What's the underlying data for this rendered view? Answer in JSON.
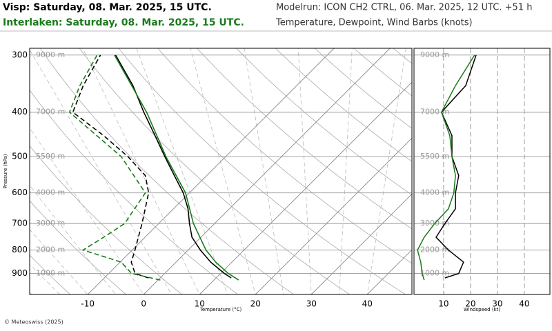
{
  "header": {
    "title_1": "Visp: Saturday, 08. Mar. 2025, 15 UTC.",
    "title_2": "Interlaken: Saturday, 08. Mar. 2025, 15 UTC.",
    "modelrun": "Modelrun: ICON CH2 CTRL, 06. Mar. 2025, 12 UTC. +51 h",
    "subtitle": "Temperature, Dewpoint, Wind Barbs (knots)"
  },
  "footer": "© Meteoswiss (2025)",
  "chart_data": [
    {
      "type": "skewt",
      "ylabel": "Pressure (hPa)",
      "xlabel": "Temperature (°C)",
      "log_y": true,
      "xlim": [
        -20.4,
        48.0
      ],
      "ylim": [
        1000,
        290
      ],
      "xticks": [
        -10,
        0,
        10,
        20,
        30,
        40
      ],
      "yticks": [
        300,
        400,
        500,
        600,
        700,
        800,
        900
      ],
      "altitude_labels": [
        "9000 m",
        "7000 m",
        "5500 m",
        "4000 m",
        "3000 m",
        "2000 m",
        "1000 m"
      ],
      "series": [
        {
          "color": "#000000",
          "dashed": false,
          "pressure": [
            920,
            900,
            850,
            800,
            750,
            700,
            650,
            600,
            550,
            500,
            450,
            400,
            350,
            300
          ],
          "values": [
            12.7,
            10.7,
            6.2,
            2.2,
            -1.6,
            -4.5,
            -7.4,
            -11.1,
            -15.8,
            -20.9,
            -26.4,
            -32.6,
            -39.3,
            -47.9
          ]
        },
        {
          "color": "#1a7a1a",
          "dashed": false,
          "pressure": [
            930,
            900,
            850,
            800,
            700,
            600,
            500,
            400,
            300
          ],
          "values": [
            14.4,
            11.4,
            7.1,
            3.2,
            -3.8,
            -10.7,
            -20.7,
            -32.1,
            -48.1
          ]
        },
        {
          "color": "#000000",
          "dashed": true,
          "pressure": [
            920,
            900,
            850,
            800,
            700,
            600,
            550,
            500,
            450,
            400,
            350,
            300
          ],
          "values": [
            -2.1,
            -5.3,
            -8.0,
            -9.5,
            -13.0,
            -17.3,
            -21.0,
            -27.5,
            -35.6,
            -45.3,
            -48.2,
            -50.6
          ]
        },
        {
          "color": "#1a7a1a",
          "dashed": true,
          "pressure": [
            930,
            900,
            850,
            800,
            750,
            700,
            600,
            500,
            400,
            350,
            300
          ],
          "values": [
            0.4,
            -5.9,
            -9.8,
            -18.8,
            -17.4,
            -16.1,
            -17.9,
            -28.7,
            -45.9,
            -48.8,
            -51.2
          ]
        }
      ]
    },
    {
      "type": "profile",
      "xlabel": "Windspeed (kt)",
      "log_y": true,
      "xlim": [
        -1,
        49.5
      ],
      "ylim": [
        1000,
        290
      ],
      "xticks": [
        10,
        20,
        30,
        40
      ],
      "yticks": [
        300,
        400,
        500,
        600,
        700,
        800,
        900
      ],
      "altitude_labels": [
        "9000 m",
        "7000 m",
        "5500 m",
        "4000 m",
        "3000 m",
        "2000 m",
        "1000 m"
      ],
      "series": [
        {
          "color": "#000000",
          "pressure": [
            920,
            900,
            850,
            800,
            750,
            700,
            650,
            600,
            550,
            500,
            450,
            400,
            350,
            300
          ],
          "values": [
            10.5,
            15.6,
            17.4,
            11.8,
            7.2,
            10.5,
            14.4,
            14.4,
            15.6,
            13.1,
            13.1,
            9.2,
            18.2,
            22.1
          ]
        },
        {
          "color": "#1a7a1a",
          "pressure": [
            930,
            900,
            850,
            800,
            750,
            700,
            650,
            600,
            550,
            500,
            450,
            400,
            350,
            300
          ],
          "values": [
            2.8,
            2.0,
            1.5,
            0.3,
            2.8,
            6.7,
            11.8,
            13.8,
            14.4,
            13.1,
            12.3,
            9.2,
            14.4,
            21.5
          ]
        }
      ]
    }
  ]
}
